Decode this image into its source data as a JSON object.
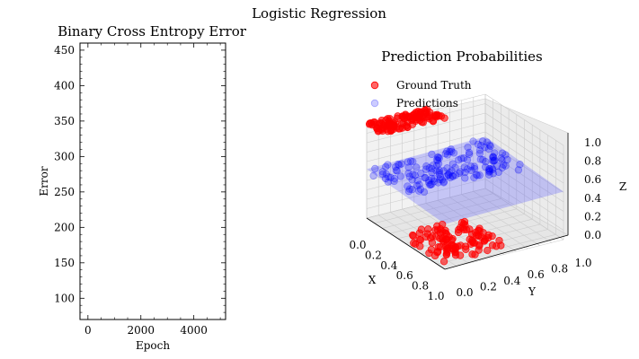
{
  "figure_title": "Logistic Regression",
  "chart_data": [
    {
      "type": "line",
      "title": "Binary Cross Entropy Error",
      "xlabel": "Epoch",
      "ylabel": "Error",
      "xlim": [
        -300,
        5200
      ],
      "ylim": [
        70,
        460
      ],
      "xticks": [
        0,
        2000,
        4000
      ],
      "yticks": [
        100,
        150,
        200,
        250,
        300,
        350,
        400,
        450
      ],
      "series": [],
      "grid": false
    },
    {
      "type": "scatter3d",
      "title": "Prediction Probabilities",
      "xlabel": "X",
      "ylabel": "Y",
      "zlabel": "Z",
      "xlim": [
        0,
        1
      ],
      "ylim": [
        0,
        1
      ],
      "zlim": [
        0,
        1
      ],
      "xticks": [
        "0.0",
        "0.2",
        "0.4",
        "0.6",
        "0.8",
        "1.0"
      ],
      "yticks": [
        "0.0",
        "0.2",
        "0.4",
        "0.6",
        "0.8",
        "1.0"
      ],
      "zticks": [
        "0.0",
        "0.2",
        "0.4",
        "0.6",
        "0.8",
        "1.0"
      ],
      "legend": {
        "placement": "upper-left",
        "entries": [
          "Ground Truth",
          "Predictions"
        ]
      },
      "grid": true,
      "series": [
        {
          "name": "Ground Truth",
          "color": "#ff0000",
          "opacity": 0.6,
          "z_levels": [
            0,
            1
          ]
        },
        {
          "name": "Predictions",
          "color": "#0000ff",
          "opacity": 0.25,
          "z_range": [
            0.45,
            0.55
          ]
        }
      ],
      "surface": {
        "color": "#3f3fff",
        "opacity": 0.25
      }
    }
  ]
}
